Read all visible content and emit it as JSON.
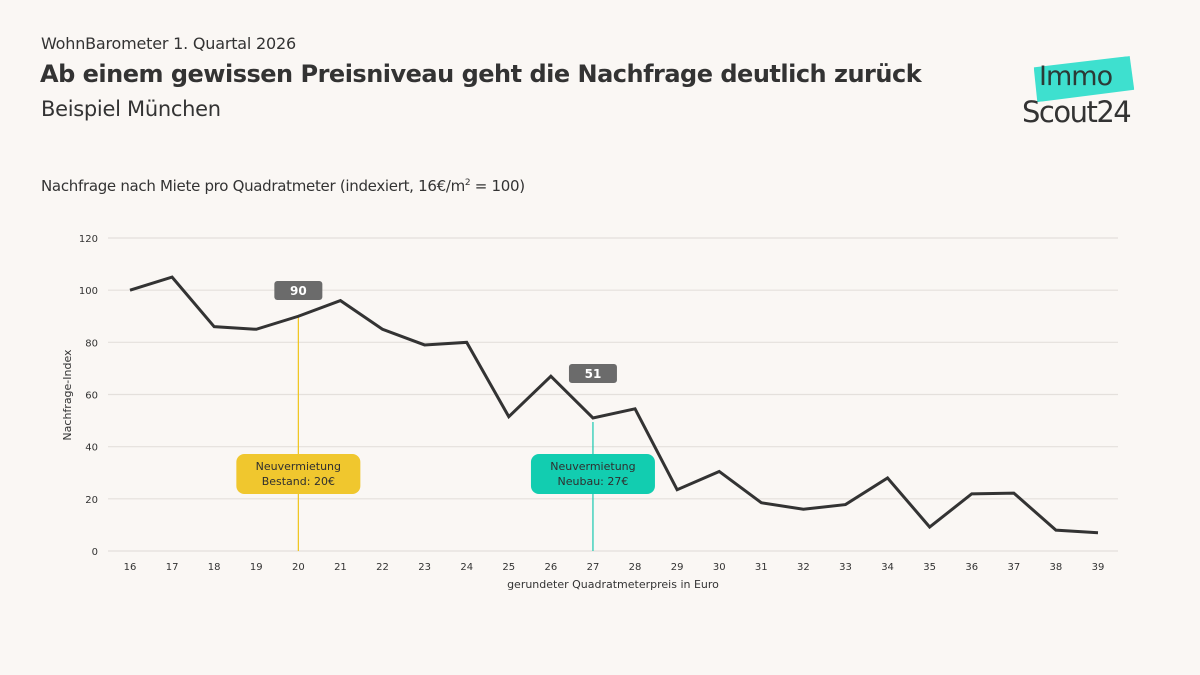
{
  "header": {
    "kicker": "WohnBarometer 1. Quartal 2026",
    "title": "Ab einem gewissen Preisniveau geht die Nachfrage deutlich zurück",
    "subtitle": "Beispiel München",
    "chart_title_main": "Nachfrage nach Miete pro Quadratmeter (indexiert, 16€/m",
    "chart_title_sup": "2",
    "chart_title_end": " = 100)"
  },
  "logo": {
    "line1": "Immo",
    "line2": "Scout24",
    "accent_color": "#3ee0cf"
  },
  "chart_data": {
    "type": "line",
    "title": "Nachfrage nach Miete pro Quadratmeter (indexiert, 16€/m² = 100)",
    "xlabel": "gerundeter Quadratmeterpreis in Euro",
    "ylabel": "Nachfrage-Index",
    "ylim": [
      0,
      120
    ],
    "yticks": [
      0,
      20,
      40,
      60,
      80,
      100,
      120
    ],
    "grid": true,
    "categories": [
      "16",
      "17",
      "18",
      "19",
      "20",
      "21",
      "22",
      "23",
      "24",
      "25",
      "26",
      "27",
      "28",
      "29",
      "30",
      "31",
      "32",
      "33",
      "34",
      "35",
      "36",
      "37",
      "38",
      "39"
    ],
    "series": [
      {
        "name": "Nachfrage-Index",
        "color": "#333333",
        "values": [
          100,
          105,
          86,
          85,
          90,
          96,
          85,
          79,
          80,
          51.5,
          67,
          51,
          54.5,
          23.5,
          30.5,
          18.5,
          16,
          17.8,
          28,
          9.2,
          21.9,
          22.2,
          8,
          7
        ]
      }
    ],
    "annotations": [
      {
        "category": "20",
        "value": 90,
        "label": "90",
        "line_color": "#f0c419",
        "box_text": [
          "Neuvermietung",
          "Bestand: 20€"
        ],
        "box_color": "#f0c72e"
      },
      {
        "category": "27",
        "value": 51,
        "label": "51",
        "line_color": "#17c9b0",
        "box_text": [
          "Neuvermietung",
          "Neubau: 27€"
        ],
        "box_color": "#12cdb0"
      }
    ],
    "value_label_color": "#6b6b6b"
  }
}
